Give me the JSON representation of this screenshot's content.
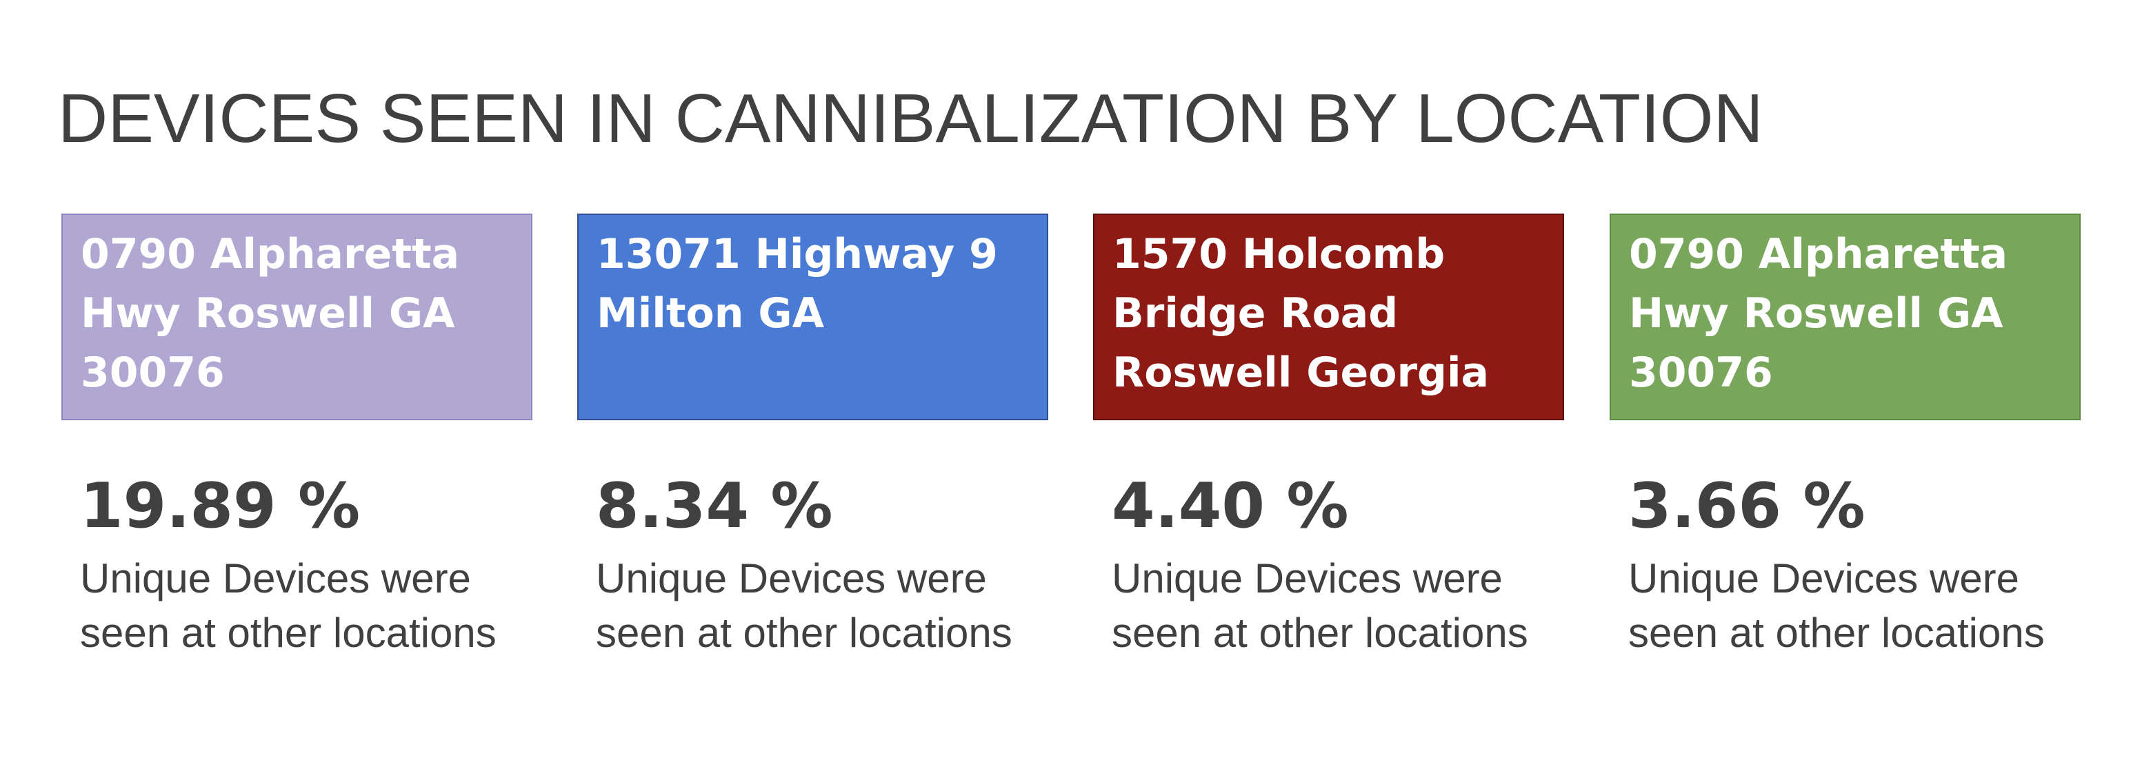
{
  "title": "DEVICES SEEN IN CANNIBALIZATION BY LOCATION",
  "locations": [
    {
      "name": "0790 Alpharetta Hwy Roswell GA 30076",
      "percent": "19.89 %",
      "caption": "Unique Devices were seen at other locations",
      "color": "#b1a7d3",
      "border_color": "#8f84c4"
    },
    {
      "name": "13071 Highway 9 Milton GA",
      "percent": "8.34 %",
      "caption": "Unique Devices were seen at other locations",
      "color": "#4a7bd4",
      "border_color": "#2f4f92"
    },
    {
      "name": "1570 Holcomb Bridge Road Roswell Georgia",
      "percent": "4.40 %",
      "caption": "Unique Devices were seen at other locations",
      "color": "#8d1a14",
      "border_color": "#5e0f0b"
    },
    {
      "name": "0790 Alpharetta Hwy Roswell GA 30076",
      "percent": "3.66 %",
      "caption": "Unique Devices were seen at other locations",
      "color": "#78a65b",
      "border_color": "#5a8a3f"
    }
  ]
}
